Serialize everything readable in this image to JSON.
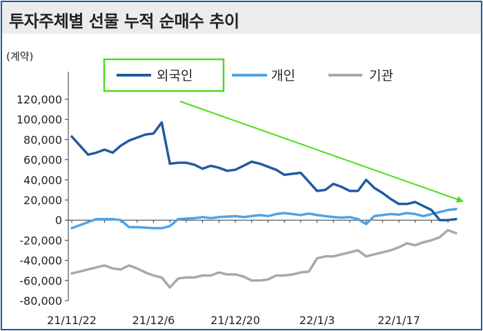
{
  "title": "투자주체별 선물 누적 순매수 추이",
  "chart_data": {
    "type": "line",
    "ylabel": "(계약)",
    "xlabel": "",
    "ylim": [
      -80000,
      120000
    ],
    "y_ticks": [
      120000,
      100000,
      80000,
      60000,
      40000,
      20000,
      0,
      -20000,
      -40000,
      -60000,
      -80000
    ],
    "y_tick_labels": [
      "120,000",
      "100,000",
      "80,000",
      "60,000",
      "40,000",
      "20,000",
      "0",
      "-20,000",
      "-40,000",
      "-60,000",
      "-80,000"
    ],
    "x_tick_labels": [
      "21/11/22",
      "21/12/6",
      "21/12/20",
      "22/1/3",
      "22/1/17"
    ],
    "x_tick_index": [
      0,
      10,
      20,
      30,
      40
    ],
    "grid": false,
    "legend_position": "top",
    "highlighted_legend_entry": "외국인",
    "annotation": "downward trend arrow over the 외국인 series",
    "series": [
      {
        "name": "외국인",
        "color": "#1f5b9f",
        "values": [
          83000,
          74000,
          65000,
          67000,
          70000,
          67000,
          74000,
          79000,
          82000,
          85000,
          86000,
          97000,
          56000,
          57000,
          57000,
          55000,
          51000,
          54000,
          52000,
          49000,
          50000,
          54000,
          58000,
          56000,
          53000,
          50000,
          45000,
          46000,
          47000,
          38000,
          29000,
          30000,
          36000,
          33000,
          29000,
          29000,
          40000,
          32000,
          27000,
          21000,
          16000,
          16000,
          18000,
          14000,
          10000,
          0,
          0,
          1000
        ]
      },
      {
        "name": "개인",
        "color": "#4fa3e6",
        "values": [
          -8000,
          -5000,
          -2000,
          1000,
          1000,
          1000,
          0,
          -7000,
          -7000,
          -7500,
          -8000,
          -8000,
          -6000,
          1000,
          1500,
          2000,
          3000,
          2000,
          3000,
          3500,
          4000,
          3000,
          4000,
          5000,
          4000,
          6000,
          7000,
          6000,
          5000,
          6500,
          5000,
          4000,
          3000,
          2500,
          3000,
          1000,
          -4000,
          4000,
          5000,
          6000,
          5500,
          7000,
          6000,
          4000,
          6000,
          8000,
          10000,
          11000
        ]
      },
      {
        "name": "기관",
        "color": "#a8a8a8",
        "values": [
          -53000,
          -51000,
          -49000,
          -47000,
          -45000,
          -48000,
          -49000,
          -45000,
          -48000,
          -52000,
          -55000,
          -57000,
          -67000,
          -58000,
          -57000,
          -57000,
          -55000,
          -55000,
          -52000,
          -54000,
          -54000,
          -56000,
          -60000,
          -60000,
          -59000,
          -55000,
          -55000,
          -54000,
          -52000,
          -51000,
          -38000,
          -36000,
          -36000,
          -34000,
          -32000,
          -30000,
          -36000,
          -34000,
          -32000,
          -30000,
          -27000,
          -23000,
          -25000,
          -22000,
          -20000,
          -17000,
          -10000,
          -13000
        ]
      }
    ]
  }
}
